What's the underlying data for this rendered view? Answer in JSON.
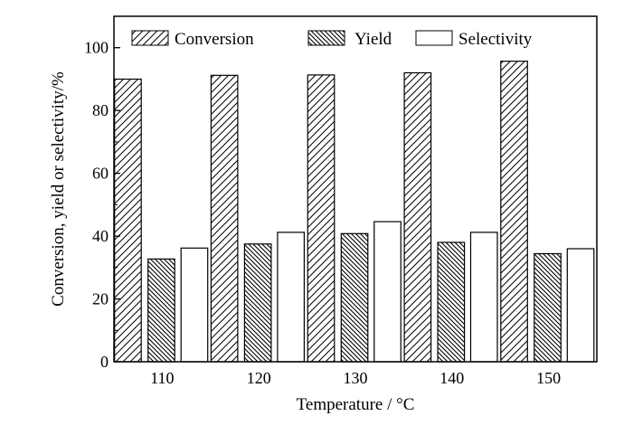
{
  "chart_data": {
    "type": "bar",
    "categories": [
      "110",
      "120",
      "130",
      "140",
      "150"
    ],
    "series": [
      {
        "name": "Conversion",
        "values": [
          90,
          91.2,
          91.3,
          92,
          95.7
        ],
        "pattern": "diag-light"
      },
      {
        "name": "Yield",
        "values": [
          32.7,
          37.5,
          40.8,
          38,
          34.4
        ],
        "pattern": "diag-dense"
      },
      {
        "name": "Selectivity",
        "values": [
          36.2,
          41.2,
          44.6,
          41.2,
          36
        ]
      }
    ],
    "title": "",
    "xlabel": "Temperature / °C",
    "ylabel": "Conversion, yield or selectivity/%",
    "ylim": [
      0,
      110
    ],
    "yticks": [
      0,
      20,
      40,
      60,
      80,
      100
    ],
    "grid": false,
    "legend_position": "top"
  }
}
